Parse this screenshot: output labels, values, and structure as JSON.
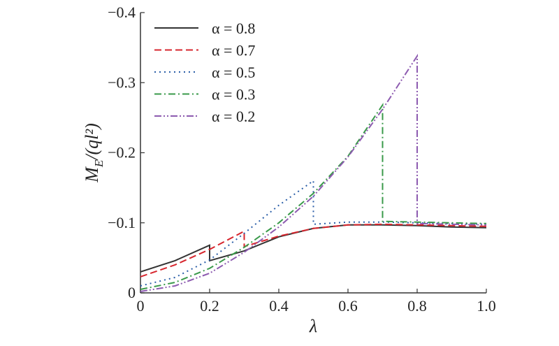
{
  "chart_data": {
    "type": "line",
    "xlabel": "λ",
    "ylabel": "M_E/(ql²)",
    "xlim": [
      0,
      1.0
    ],
    "ylim": [
      0,
      -0.4
    ],
    "x_ticks": [
      "0",
      "0.2",
      "0.4",
      "0.6",
      "0.8",
      "1.0"
    ],
    "x_tick_values": [
      0,
      0.2,
      0.4,
      0.6,
      0.8,
      1.0
    ],
    "y_ticks": [
      "0",
      "−0.1",
      "−0.2",
      "−0.3",
      "−0.4"
    ],
    "y_tick_values": [
      0,
      -0.1,
      -0.2,
      -0.3,
      -0.4
    ],
    "grid": false,
    "legend_position": "top-left",
    "series": [
      {
        "name": "α = 0.8",
        "color": "#333333",
        "dash": "solid",
        "x": [
          0,
          0.1,
          0.2,
          0.2,
          0.3,
          0.4,
          0.5,
          0.6,
          0.7,
          0.8,
          0.9,
          1.0
        ],
        "y": [
          -0.03,
          -0.046,
          -0.068,
          -0.046,
          -0.06,
          -0.08,
          -0.092,
          -0.097,
          -0.097,
          -0.096,
          -0.094,
          -0.093
        ]
      },
      {
        "name": "α = 0.7",
        "color": "#d7262e",
        "dash": "long-dash",
        "x": [
          0,
          0.1,
          0.2,
          0.3,
          0.3,
          0.4,
          0.5,
          0.6,
          0.7,
          0.8,
          0.9,
          1.0
        ],
        "y": [
          -0.023,
          -0.04,
          -0.062,
          -0.088,
          -0.066,
          -0.081,
          -0.092,
          -0.097,
          -0.098,
          -0.097,
          -0.096,
          -0.095
        ]
      },
      {
        "name": "α = 0.5",
        "color": "#2a5ea8",
        "dash": "dotted",
        "x": [
          0,
          0.1,
          0.2,
          0.3,
          0.4,
          0.5,
          0.5,
          0.6,
          0.7,
          0.8,
          0.9,
          1.0
        ],
        "y": [
          -0.01,
          -0.022,
          -0.047,
          -0.085,
          -0.125,
          -0.16,
          -0.098,
          -0.101,
          -0.101,
          -0.1,
          -0.099,
          -0.098
        ]
      },
      {
        "name": "α = 0.3",
        "color": "#3a9a4a",
        "dash": "dash-dot",
        "x": [
          0,
          0.1,
          0.2,
          0.3,
          0.4,
          0.5,
          0.6,
          0.7,
          0.7,
          0.8,
          0.9,
          1.0
        ],
        "y": [
          -0.005,
          -0.015,
          -0.035,
          -0.065,
          -0.1,
          -0.142,
          -0.195,
          -0.268,
          -0.102,
          -0.101,
          -0.1,
          -0.099
        ]
      },
      {
        "name": "α = 0.2",
        "color": "#8d5bb0",
        "dash": "dash-dot-dot",
        "x": [
          0,
          0.1,
          0.2,
          0.3,
          0.4,
          0.5,
          0.6,
          0.7,
          0.8,
          0.8,
          0.9,
          1.0
        ],
        "y": [
          -0.002,
          -0.01,
          -0.028,
          -0.058,
          -0.094,
          -0.138,
          -0.194,
          -0.262,
          -0.338,
          -0.099,
          -0.098,
          -0.097
        ]
      }
    ]
  }
}
